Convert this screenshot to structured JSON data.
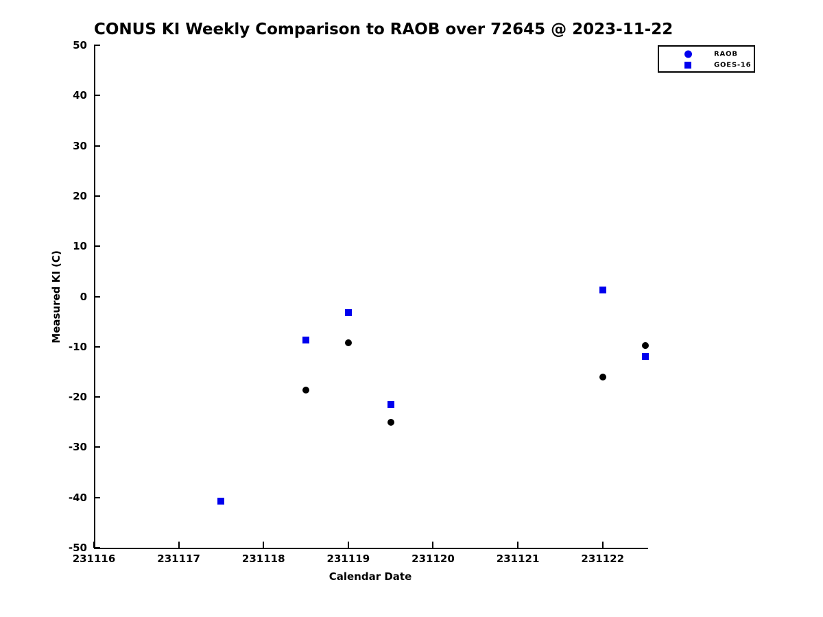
{
  "chart_data": {
    "type": "scatter",
    "title": "CONUS KI Weekly Comparison to RAOB over 72645 @ 2023-11-22",
    "xlabel": "Calendar Date",
    "ylabel": "Measured KI (C)",
    "xlim": [
      231116,
      231122.52
    ],
    "ylim": [
      -50,
      50
    ],
    "xticks": [
      231116,
      231117,
      231118,
      231119,
      231120,
      231121,
      231122
    ],
    "yticks": [
      50,
      40,
      30,
      20,
      10,
      0,
      -10,
      -20,
      -30,
      -40,
      -50
    ],
    "grid": false,
    "legend": {
      "position": "outside-top-right",
      "entries": [
        {
          "label": "RAOB",
          "marker": "circle",
          "color": "#0000ee"
        },
        {
          "label": "GOES-16",
          "marker": "square",
          "color": "#0000ee"
        }
      ]
    },
    "series": [
      {
        "name": "RAOB",
        "marker": "circle",
        "color": "#000000",
        "points": [
          [
            231118.5,
            -18.6
          ],
          [
            231119.0,
            -9.2
          ],
          [
            231119.5,
            -25.1
          ],
          [
            231122.0,
            -16.0
          ],
          [
            231122.5,
            -9.8
          ]
        ]
      },
      {
        "name": "GOES-16",
        "marker": "square",
        "color": "#0000ee",
        "points": [
          [
            231117.5,
            -40.7
          ],
          [
            231118.5,
            -8.7
          ],
          [
            231119.0,
            -3.2
          ],
          [
            231119.5,
            -21.5
          ],
          [
            231122.0,
            1.3
          ],
          [
            231122.5,
            -12.0
          ]
        ]
      }
    ]
  },
  "colors": {
    "background": "#ffffff",
    "axis": "#000000",
    "raob_point": "#000000",
    "goes16_point": "#0000ee"
  }
}
